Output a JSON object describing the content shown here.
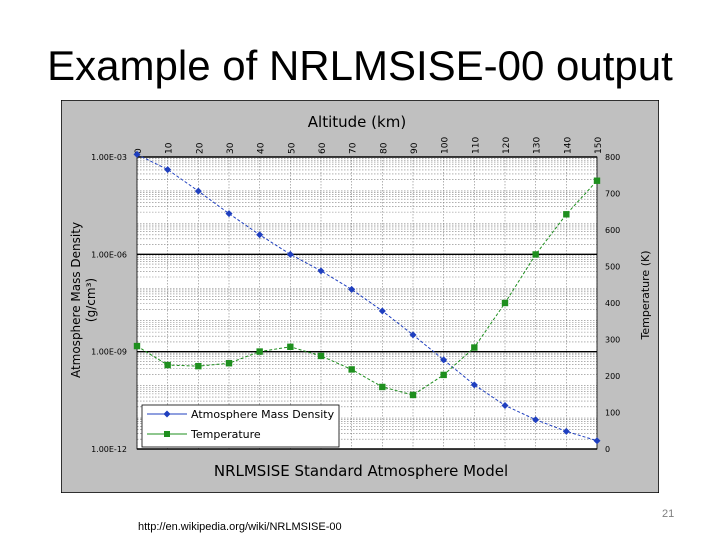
{
  "slide": {
    "title": "Example of NRLMSISE-00 output",
    "source": "http://en.wikipedia.org/wiki/NRLMSISE-00",
    "page_number": "21"
  },
  "colors": {
    "frame_bg": "#c0c0c0",
    "plot_bg": "#ffffff",
    "density": "#1f3fbf",
    "temperature": "#1e8f1e",
    "grid_major": "#000000",
    "grid_minor": "#808080"
  },
  "chart_data": {
    "type": "line",
    "title": "NRLMSISE Standard Atmosphere Model",
    "top_axis_title": "Altitude (km)",
    "left_axis_title": "Atmosphere Mass Density",
    "left_axis_unit": "(g/cm³)",
    "right_axis_title": "Temperature (K)",
    "x_ticks": [
      "0",
      "10",
      "20",
      "30",
      "40",
      "50",
      "60",
      "70",
      "80",
      "90",
      "100",
      "110",
      "120",
      "130",
      "140",
      "150"
    ],
    "xlim": [
      0,
      150
    ],
    "left_scale": "log",
    "left_ylim": [
      1e-12,
      0.001
    ],
    "left_ticks": [
      {
        "label": "1.00E-03",
        "value": 0.001
      },
      {
        "label": "1.00E-06",
        "value": 1e-06
      },
      {
        "label": "1.00E-09",
        "value": 1e-09
      },
      {
        "label": "1.00E-12",
        "value": 1e-12
      }
    ],
    "right_ylim": [
      0,
      800
    ],
    "right_ticks": [
      "0",
      "100",
      "200",
      "300",
      "400",
      "500",
      "600",
      "700",
      "800"
    ],
    "grid": true,
    "legend_position": "bottom-left",
    "series": [
      {
        "name": "Atmosphere Mass Density",
        "axis": "left",
        "marker": "diamond",
        "x": [
          0,
          10,
          20,
          30,
          40,
          50,
          60,
          70,
          80,
          90,
          100,
          110,
          120,
          130,
          140,
          150
        ],
        "y": [
          0.0012,
          0.00041,
          8.9e-05,
          1.8e-05,
          4e-06,
          1e-06,
          3.1e-07,
          8.3e-08,
          1.8e-08,
          3.3e-09,
          5.6e-10,
          9.5e-11,
          2.2e-11,
          8e-12,
          3.5e-12,
          1.8e-12
        ]
      },
      {
        "name": "Temperature",
        "axis": "right",
        "marker": "square",
        "x": [
          0,
          10,
          20,
          30,
          40,
          50,
          60,
          70,
          80,
          90,
          100,
          110,
          120,
          130,
          140,
          150
        ],
        "y": [
          282,
          230,
          227,
          235,
          267,
          280,
          255,
          218,
          170,
          148,
          203,
          278,
          400,
          533,
          643,
          735
        ]
      }
    ]
  }
}
